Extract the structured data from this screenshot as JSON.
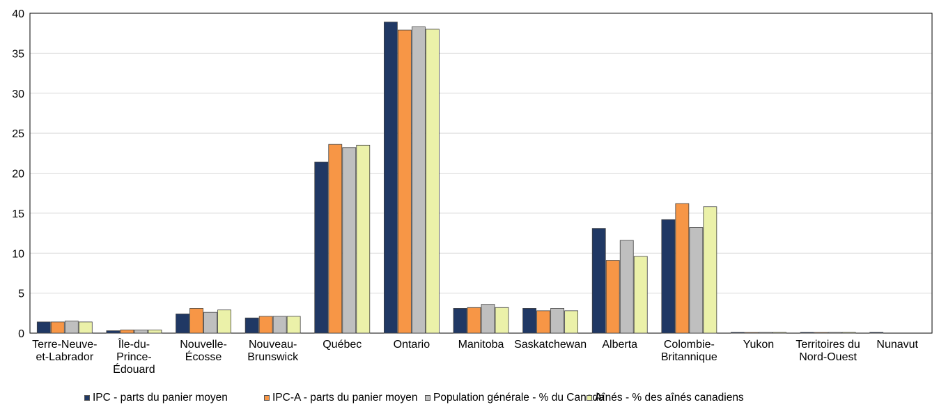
{
  "chart_data": {
    "type": "bar",
    "categories": [
      [
        "Terre-Neuve-",
        "et-Labrador"
      ],
      [
        "Île-du-",
        "Prince-",
        "Édouard"
      ],
      [
        "Nouvelle-",
        "Écosse"
      ],
      [
        "Nouveau-",
        "Brunswick"
      ],
      [
        "Québec"
      ],
      [
        "Ontario"
      ],
      [
        "Manitoba"
      ],
      [
        "Saskatchewan"
      ],
      [
        "Alberta"
      ],
      [
        "Colombie-",
        "Britannique"
      ],
      [
        "Yukon"
      ],
      [
        "Territoires du",
        "Nord-Ouest"
      ],
      [
        "Nunavut"
      ]
    ],
    "series": [
      {
        "name": "IPC - parts du panier moyen",
        "color": "#203864",
        "values": [
          1.4,
          0.3,
          2.4,
          1.9,
          21.4,
          38.9,
          3.1,
          3.1,
          13.1,
          14.2,
          0.1,
          0.1,
          0.1
        ]
      },
      {
        "name": "IPC-A - parts du panier moyen",
        "color": "#F79646",
        "values": [
          1.4,
          0.4,
          3.1,
          2.1,
          23.6,
          37.9,
          3.2,
          2.8,
          9.1,
          16.2,
          0.05,
          0.05,
          0.0
        ]
      },
      {
        "name": "Population générale - % du Canada",
        "color": "#BFBFBF",
        "values": [
          1.5,
          0.4,
          2.6,
          2.1,
          23.2,
          38.3,
          3.6,
          3.1,
          11.6,
          13.2,
          0.1,
          0.1,
          0.0
        ]
      },
      {
        "name": "Aînés - % des aînés canadiens",
        "color": "#EBF1A9",
        "values": [
          1.4,
          0.4,
          2.9,
          2.1,
          23.5,
          38.0,
          3.2,
          2.8,
          9.6,
          15.8,
          0.1,
          0.1,
          0.0
        ]
      }
    ],
    "yticks": [
      0,
      5,
      10,
      15,
      20,
      25,
      30,
      35,
      40
    ],
    "ylim": [
      0,
      40
    ],
    "grid": true,
    "legend_position": "bottom"
  }
}
